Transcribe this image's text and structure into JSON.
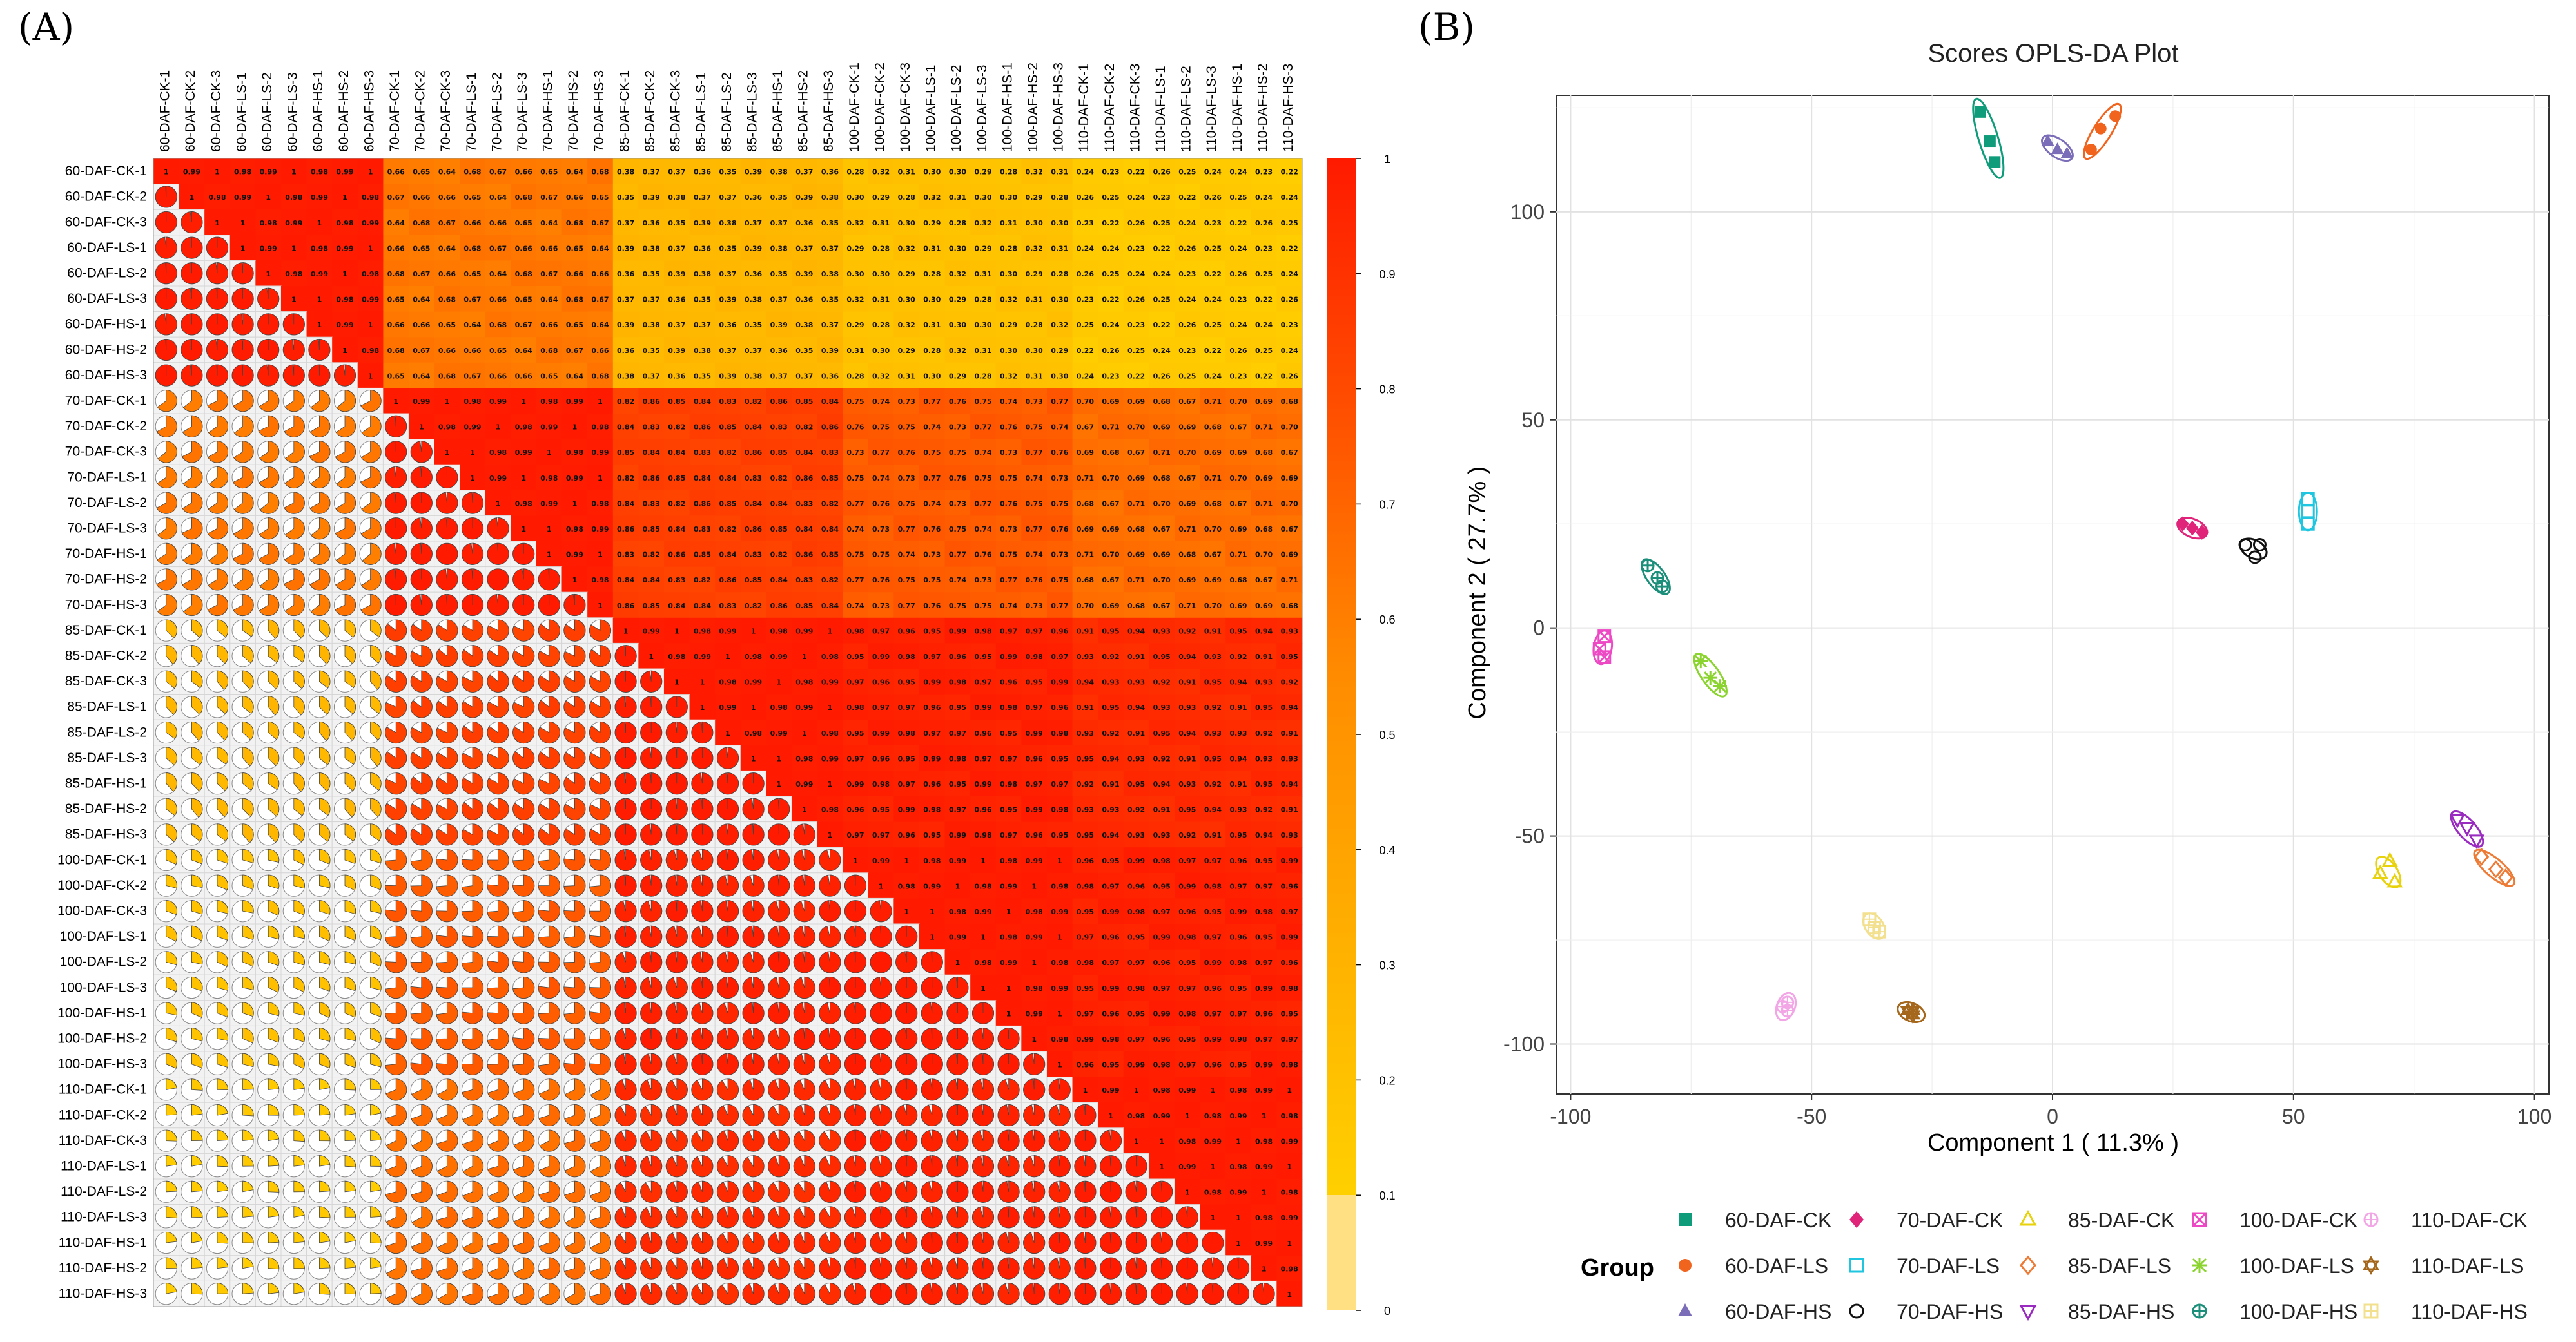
{
  "panel_labels": {
    "a": "(A)",
    "b": "(B)"
  },
  "chart_data": [
    {
      "type": "heatmap",
      "panel": "(A)",
      "labels": [
        "60-DAF-CK-1",
        "60-DAF-CK-2",
        "60-DAF-CK-3",
        "60-DAF-LS-1",
        "60-DAF-LS-2",
        "60-DAF-LS-3",
        "60-DAF-HS-1",
        "60-DAF-HS-2",
        "60-DAF-HS-3",
        "70-DAF-CK-1",
        "70-DAF-CK-2",
        "70-DAF-CK-3",
        "70-DAF-LS-1",
        "70-DAF-LS-2",
        "70-DAF-LS-3",
        "70-DAF-HS-1",
        "70-DAF-HS-2",
        "70-DAF-HS-3",
        "85-DAF-CK-1",
        "85-DAF-CK-2",
        "85-DAF-CK-3",
        "85-DAF-LS-1",
        "85-DAF-LS-2",
        "85-DAF-LS-3",
        "85-DAF-HS-1",
        "85-DAF-HS-2",
        "85-DAF-HS-3",
        "100-DAF-CK-1",
        "100-DAF-CK-2",
        "100-DAF-CK-3",
        "100-DAF-LS-1",
        "100-DAF-LS-2",
        "100-DAF-LS-3",
        "100-DAF-HS-1",
        "100-DAF-HS-2",
        "100-DAF-HS-3",
        "110-DAF-CK-1",
        "110-DAF-CK-2",
        "110-DAF-CK-3",
        "110-DAF-LS-1",
        "110-DAF-LS-2",
        "110-DAF-LS-3",
        "110-DAF-HS-1",
        "110-DAF-HS-2",
        "110-DAF-HS-3"
      ],
      "block_correlation_approx": {
        "groups": [
          "60-DAF",
          "70-DAF",
          "85-DAF",
          "100-DAF",
          "110-DAF"
        ],
        "matrix": [
          [
            0.99,
            0.66,
            0.37,
            0.3,
            0.24
          ],
          [
            0.66,
            0.99,
            0.84,
            0.75,
            0.69
          ],
          [
            0.37,
            0.84,
            0.99,
            0.97,
            0.93
          ],
          [
            0.3,
            0.75,
            0.97,
            0.99,
            0.97
          ],
          [
            0.24,
            0.69,
            0.93,
            0.97,
            0.99
          ]
        ]
      },
      "upper_triangle": "numeric coefficient labels",
      "lower_triangle": "pie glyphs showing the coefficient",
      "colorbar": {
        "ticks": [
          "1",
          "0.9",
          "0.8",
          "0.7",
          "0.6",
          "0.5",
          "0.4",
          "0.3",
          "0.2",
          "0.1",
          "0"
        ],
        "range": [
          0,
          1
        ],
        "colors": [
          "#FFE082",
          "#FFC107",
          "#FF9800",
          "#FF6D00",
          "#FF1A00"
        ]
      }
    },
    {
      "type": "scatter",
      "panel": "(B)",
      "title": "Scores OPLS-DA Plot",
      "xlabel": "Component 1 ( 11.3% )",
      "ylabel": "Component 2 ( 27.7% )",
      "xlim": [
        -103,
        103
      ],
      "ylim": [
        -112,
        128
      ],
      "xticks": [
        "-100",
        "-50",
        "0",
        "50",
        "100"
      ],
      "yticks": [
        "100",
        "50",
        "0",
        "-50",
        "-100"
      ],
      "legend_title": "Group",
      "groups": [
        {
          "name": "60-DAF-CK",
          "color": "#0E9C7A",
          "marker": "square",
          "points": [
            [
              -15,
              124
            ],
            [
              -13,
              117
            ],
            [
              -12,
              112
            ]
          ]
        },
        {
          "name": "60-DAF-LS",
          "color": "#F0641E",
          "marker": "circle",
          "points": [
            [
              8,
              115
            ],
            [
              10,
              120
            ],
            [
              13,
              123
            ]
          ]
        },
        {
          "name": "60-DAF-HS",
          "color": "#7B6DB8",
          "marker": "triangle",
          "points": [
            [
              -1,
              117
            ],
            [
              1,
              115
            ],
            [
              3,
              114
            ]
          ]
        },
        {
          "name": "70-DAF-CK",
          "color": "#E0247A",
          "marker": "diamond",
          "points": [
            [
              27,
              25
            ],
            [
              29,
              24
            ],
            [
              31,
              23
            ]
          ]
        },
        {
          "name": "70-DAF-LS",
          "color": "#20C6DF",
          "marker": "square-open",
          "points": [
            [
              53,
              31
            ],
            [
              53,
              28
            ],
            [
              53,
              25
            ]
          ]
        },
        {
          "name": "70-DAF-HS",
          "color": "#111111",
          "marker": "circle-open",
          "points": [
            [
              40,
              20
            ],
            [
              42,
              17
            ],
            [
              43,
              20
            ]
          ]
        },
        {
          "name": "85-DAF-CK",
          "color": "#E8D20C",
          "marker": "triangle-open",
          "points": [
            [
              68,
              -59
            ],
            [
              70,
              -56
            ],
            [
              71,
              -61
            ]
          ]
        },
        {
          "name": "85-DAF-LS",
          "color": "#EE7B35",
          "marker": "diamond-open",
          "points": [
            [
              89,
              -55
            ],
            [
              92,
              -58
            ],
            [
              94,
              -60
            ]
          ]
        },
        {
          "name": "85-DAF-HS",
          "color": "#9A2BC0",
          "marker": "triangle-down-open",
          "points": [
            [
              84,
              -46
            ],
            [
              86,
              -48
            ],
            [
              88,
              -51
            ]
          ]
        },
        {
          "name": "100-DAF-CK",
          "color": "#EE49C5",
          "marker": "square-x",
          "points": [
            [
              -94,
              -5
            ],
            [
              -93,
              -2
            ],
            [
              -93,
              -7
            ]
          ]
        },
        {
          "name": "100-DAF-LS",
          "color": "#8BD42F",
          "marker": "star",
          "points": [
            [
              -73,
              -8
            ],
            [
              -71,
              -12
            ],
            [
              -69,
              -14
            ]
          ]
        },
        {
          "name": "100-DAF-HS",
          "color": "#1B8F7A",
          "marker": "circle-plus",
          "points": [
            [
              -84,
              15
            ],
            [
              -82,
              12
            ],
            [
              -81,
              10
            ]
          ]
        },
        {
          "name": "110-DAF-CK",
          "color": "#F2A6E6",
          "marker": "circle-plus-open",
          "points": [
            [
              -56,
              -91
            ],
            [
              -55,
              -90
            ],
            [
              -55,
              -92
            ]
          ]
        },
        {
          "name": "110-DAF-LS",
          "color": "#A4671B",
          "marker": "star-of-david",
          "points": [
            [
              -30,
              -92
            ],
            [
              -29,
              -93
            ],
            [
              -29,
              -92
            ]
          ]
        },
        {
          "name": "110-DAF-HS",
          "color": "#F2E08E",
          "marker": "square-plus-open",
          "points": [
            [
              -38,
              -70
            ],
            [
              -37,
              -72
            ],
            [
              -36,
              -73
            ]
          ]
        }
      ]
    }
  ]
}
